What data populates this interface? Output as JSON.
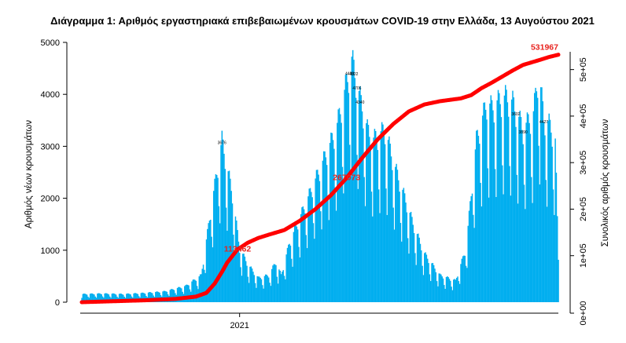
{
  "chart_data": {
    "type": "bar",
    "title": "Διάγραμμα 1: Αριθμός εργαστηριακά επιβεβαιωμένων κρουσμάτων COVID-19 στην Ελλάδα, 13 Αυγούστου 2021",
    "xlabel": "",
    "ylabel": "Αριθμός νέων κρουσμάτων",
    "y2label": "Συνολικός αριθμός κρουσμάτων",
    "ylim": [
      0,
      5000
    ],
    "y2lim": [
      0,
      550000
    ],
    "y_ticks": [
      "0",
      "1000",
      "2000",
      "3000",
      "4000",
      "5000"
    ],
    "y2_ticks": [
      "0e+00",
      "1e+05",
      "2e+05",
      "3e+05",
      "4e+05",
      "5e+05"
    ],
    "x_tick_label": "2021",
    "x_tick_day": 152,
    "n_days": 460,
    "colors": {
      "bars": "#00aeef",
      "cumulative": "#ff0000"
    },
    "daily_series": {
      "name": "",
      "days": [
        0,
        20,
        40,
        60,
        80,
        100,
        115,
        125,
        135,
        145,
        152,
        160,
        170,
        180,
        187,
        192,
        200,
        215,
        230,
        245,
        260,
        270,
        275,
        280,
        292,
        300,
        310,
        320,
        330,
        345,
        360,
        370,
        380,
        390,
        395,
        400,
        408,
        415,
        425,
        435,
        440,
        445,
        450,
        456,
        459
      ],
      "values": [
        150,
        160,
        150,
        170,
        200,
        300,
        500,
        1800,
        3000,
        2000,
        1000,
        700,
        450,
        500,
        750,
        500,
        1100,
        1800,
        2500,
        3200,
        4500,
        3600,
        3200,
        3000,
        3200,
        2600,
        2000,
        1400,
        900,
        500,
        400,
        1000,
        3000,
        3700,
        3600,
        3700,
        3800,
        3700,
        3200,
        3500,
        4300,
        3400,
        3300,
        3000,
        800
      ]
    },
    "daily_bar_labels": [
      {
        "day": 135,
        "label": "3676"
      },
      {
        "day": 262,
        "label": "4322"
      },
      {
        "day": 258,
        "label": "4400"
      },
      {
        "day": 265,
        "label": "4706"
      },
      {
        "day": 268,
        "label": "4340"
      },
      {
        "day": 445,
        "label": "4427"
      },
      {
        "day": 425,
        "label": "3890"
      },
      {
        "day": 418,
        "label": "3602"
      }
    ],
    "cumulative_series": {
      "name": "",
      "days": [
        0,
        30,
        60,
        90,
        110,
        120,
        128,
        135,
        140,
        150,
        160,
        170,
        180,
        195,
        210,
        225,
        240,
        255,
        270,
        285,
        300,
        315,
        330,
        345,
        355,
        365,
        375,
        385,
        395,
        405,
        415,
        425,
        440,
        450,
        459
      ],
      "values": [
        0,
        2000,
        4000,
        7000,
        12000,
        20000,
        40000,
        65000,
        85000,
        113462,
        128000,
        138000,
        145000,
        155000,
        175000,
        200000,
        230000,
        267073,
        310000,
        350000,
        383000,
        410000,
        425000,
        432000,
        435000,
        438000,
        445000,
        460000,
        472000,
        485000,
        498000,
        510000,
        520000,
        527000,
        531967
      ]
    },
    "cumulative_labels": [
      {
        "day": 150,
        "value": 113462,
        "label": "113462"
      },
      {
        "day": 255,
        "value": 267073,
        "label": "267073"
      },
      {
        "day": 459,
        "value": 531967,
        "label": "531967"
      }
    ]
  }
}
